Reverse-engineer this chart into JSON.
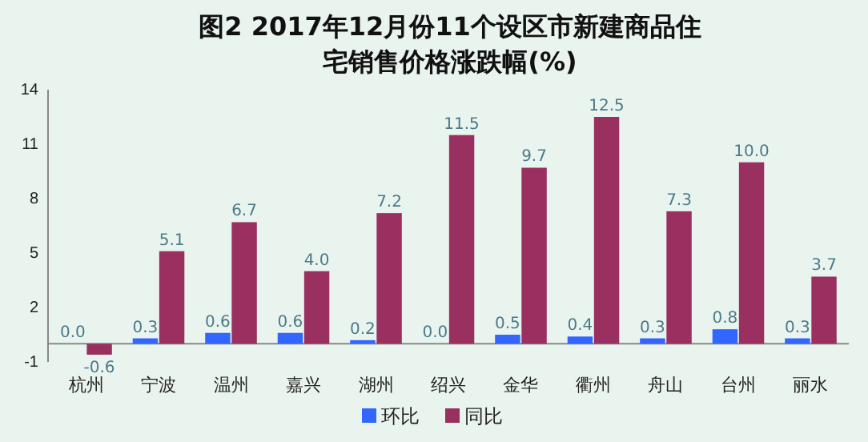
{
  "chart_data": {
    "type": "bar",
    "title": "图2  2017年12月份11个设区市新建商品住宅销售价格涨跌幅(%)",
    "categories": [
      "杭州",
      "宁波",
      "温州",
      "嘉兴",
      "湖州",
      "绍兴",
      "金华",
      "衢州",
      "舟山",
      "台州",
      "丽水"
    ],
    "series": [
      {
        "name": "环比",
        "color": "#3366ff",
        "values": [
          0.0,
          0.3,
          0.6,
          0.6,
          0.2,
          0.0,
          0.5,
          0.4,
          0.3,
          0.8,
          0.3
        ],
        "value_labels": [
          "0.0",
          "0.3",
          "0.6",
          "0.6",
          "0.2",
          "0.0",
          "0.5",
          "0.4",
          "0.3",
          "0.8",
          "0.3"
        ]
      },
      {
        "name": "同比",
        "color": "#99305f",
        "values": [
          -0.6,
          5.1,
          6.7,
          4.0,
          7.2,
          11.5,
          9.7,
          12.5,
          7.3,
          10.0,
          3.7
        ],
        "value_labels": [
          "-0.6",
          "5.1",
          "6.7",
          "4.0",
          "7.2",
          "11.5",
          "9.7",
          "12.5",
          "7.3",
          "10.0",
          "3.7"
        ]
      }
    ],
    "ylim": [
      -1,
      14
    ],
    "yticks": [
      -1,
      2,
      5,
      8,
      11,
      14
    ],
    "legend": "bottom"
  }
}
